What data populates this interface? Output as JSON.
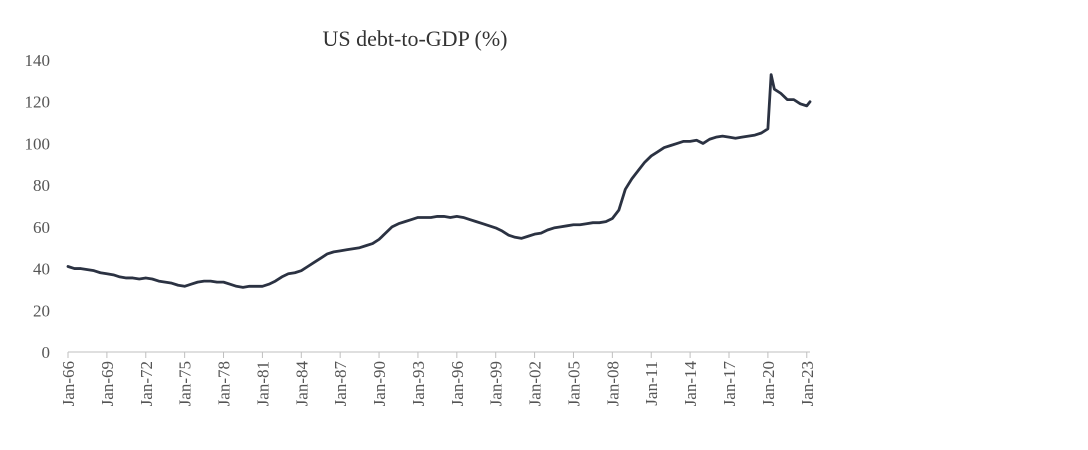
{
  "chart_data": {
    "type": "line",
    "title": "US debt-to-GDP (%)",
    "xlabel": "",
    "ylabel": "",
    "ylim": [
      0,
      140
    ],
    "y_ticks": [
      0,
      20,
      40,
      60,
      80,
      100,
      120,
      140
    ],
    "x_ticks": [
      "Jan-66",
      "Jan-69",
      "Jan-72",
      "Jan-75",
      "Jan-78",
      "Jan-81",
      "Jan-84",
      "Jan-87",
      "Jan-90",
      "Jan-93",
      "Jan-96",
      "Jan-99",
      "Jan-02",
      "Jan-05",
      "Jan-08",
      "Jan-11",
      "Jan-14",
      "Jan-17",
      "Jan-20",
      "Jan-23"
    ],
    "x_tick_years": [
      1966,
      1969,
      1972,
      1975,
      1978,
      1981,
      1984,
      1987,
      1990,
      1993,
      1996,
      1999,
      2002,
      2005,
      2008,
      2011,
      2014,
      2017,
      2020,
      2023
    ],
    "grid": false,
    "legend": "none",
    "line_color": "#2b3242",
    "series": [
      {
        "x": [
          1966.0,
          1966.5,
          1967.0,
          1967.5,
          1968.0,
          1968.5,
          1969.0,
          1969.5,
          1970.0,
          1970.5,
          1971.0,
          1971.5,
          1972.0,
          1972.5,
          1973.0,
          1973.5,
          1974.0,
          1974.5,
          1975.0,
          1975.5,
          1976.0,
          1976.5,
          1977.0,
          1977.5,
          1978.0,
          1978.5,
          1979.0,
          1979.5,
          1980.0,
          1980.5,
          1981.0,
          1981.5,
          1982.0,
          1982.5,
          1983.0,
          1983.5,
          1984.0,
          1984.5,
          1985.0,
          1985.5,
          1986.0,
          1986.5,
          1987.0,
          1987.5,
          1988.0,
          1988.5,
          1989.0,
          1989.5,
          1990.0,
          1990.5,
          1991.0,
          1991.5,
          1992.0,
          1992.5,
          1993.0,
          1993.5,
          1994.0,
          1994.5,
          1995.0,
          1995.5,
          1996.0,
          1996.5,
          1997.0,
          1997.5,
          1998.0,
          1998.5,
          1999.0,
          1999.5,
          2000.0,
          2000.5,
          2001.0,
          2001.5,
          2002.0,
          2002.5,
          2003.0,
          2003.5,
          2004.0,
          2004.5,
          2005.0,
          2005.5,
          2006.0,
          2006.5,
          2007.0,
          2007.5,
          2008.0,
          2008.5,
          2009.0,
          2009.5,
          2010.0,
          2010.5,
          2011.0,
          2011.5,
          2012.0,
          2012.5,
          2013.0,
          2013.5,
          2014.0,
          2014.5,
          2015.0,
          2015.5,
          2016.0,
          2016.5,
          2017.0,
          2017.5,
          2018.0,
          2018.5,
          2019.0,
          2019.5,
          2020.0,
          2020.25,
          2020.5,
          2021.0,
          2021.5,
          2022.0,
          2022.5,
          2023.0,
          2023.25
        ],
        "values": [
          41,
          40,
          40,
          39.5,
          39,
          38,
          37.5,
          37,
          36,
          35.5,
          35.5,
          35,
          35.5,
          35,
          34,
          33.5,
          33,
          32,
          31.5,
          32.5,
          33.5,
          34,
          34,
          33.5,
          33.5,
          32.5,
          31.5,
          31,
          31.5,
          31.5,
          31.5,
          32.5,
          34,
          36,
          37.5,
          38,
          39,
          41,
          43,
          45,
          47,
          48,
          48.5,
          49,
          49.5,
          50,
          51,
          52,
          54,
          57,
          60,
          61.5,
          62.5,
          63.5,
          64.5,
          64.5,
          64.5,
          65,
          65,
          64.5,
          65,
          64.5,
          63.5,
          62.5,
          61.5,
          60.5,
          59.5,
          58,
          56,
          55,
          54.5,
          55.5,
          56.5,
          57,
          58.5,
          59.5,
          60,
          60.5,
          61,
          61,
          61.5,
          62,
          62,
          62.5,
          64,
          68,
          78,
          83,
          87,
          91,
          94,
          96,
          98,
          99,
          100,
          101,
          101,
          101.5,
          100,
          102,
          103,
          103.5,
          103,
          102.5,
          103,
          103.5,
          104,
          105,
          107,
          133,
          126,
          124,
          121,
          121,
          119,
          118,
          120
        ]
      }
    ]
  }
}
